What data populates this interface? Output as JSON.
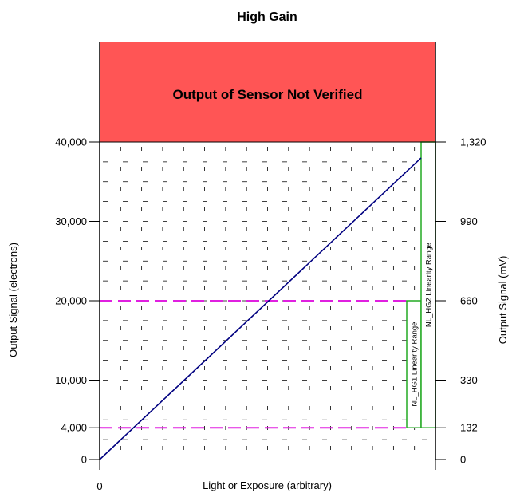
{
  "chart_data": {
    "type": "line",
    "title": "High Gain",
    "xlabel": "Light or Exposure (arbitrary)",
    "ylabel": "Output Signal (electrons)",
    "y2label": "Output Signal (mV)",
    "ylim": [
      0,
      40000
    ],
    "y_ticks": [
      {
        "value": 0,
        "label": "0"
      },
      {
        "value": 4000,
        "label": "4,000"
      },
      {
        "value": 10000,
        "label": "10,000"
      },
      {
        "value": 20000,
        "label": "20,000"
      },
      {
        "value": 30000,
        "label": "30,000"
      },
      {
        "value": 40000,
        "label": "40,000"
      }
    ],
    "y2_ticks": [
      {
        "value": 0,
        "label": "0"
      },
      {
        "value": 4000,
        "label": "132"
      },
      {
        "value": 10000,
        "label": "330"
      },
      {
        "value": 20000,
        "label": "660"
      },
      {
        "value": 30000,
        "label": "990"
      },
      {
        "value": 40000,
        "label": "1,320"
      }
    ],
    "x_ticks": [
      {
        "value": 0,
        "label": "0"
      }
    ],
    "grid": true,
    "series": [
      {
        "x": [
          0,
          1
        ],
        "values": [
          0,
          38000
        ],
        "color": "#000080"
      }
    ],
    "thresholds": [
      {
        "value": 20000,
        "color": "#e020e0"
      },
      {
        "value": 4000,
        "color": "#e020e0"
      }
    ],
    "banner": {
      "label": "Output of Sensor Not Verified",
      "color": "#ff5555"
    },
    "ranges": [
      {
        "label": "NL_HG1 Linearity Range",
        "ymin": 4000,
        "ymax": 20000,
        "color": "#22aa22"
      },
      {
        "label": "NL_HG2 Linearity Range",
        "ymin": 4000,
        "ymax": 40000,
        "color": "#22aa22"
      }
    ]
  }
}
